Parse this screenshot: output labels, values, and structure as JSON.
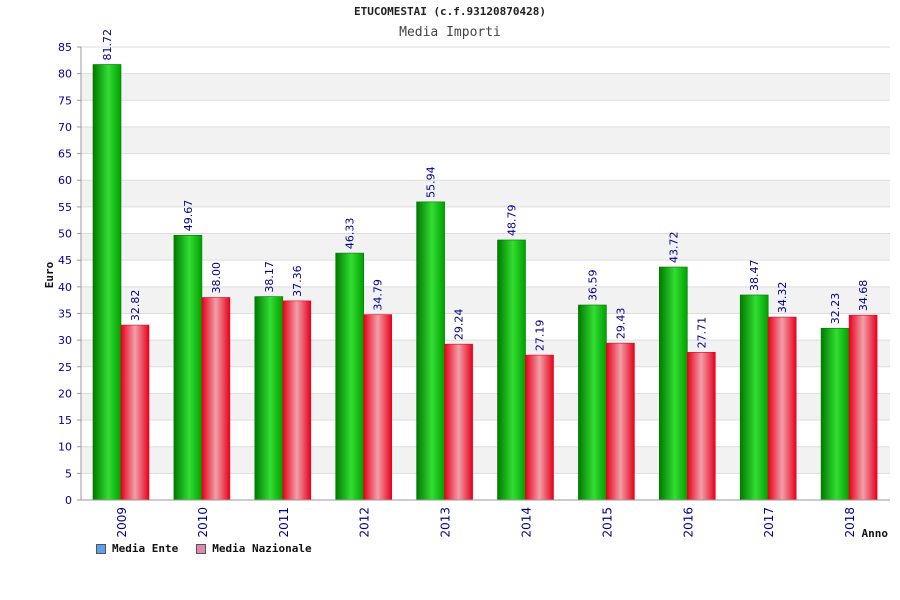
{
  "chart_data": {
    "type": "bar",
    "title": "ETUCOMESTAI (c.f.93120870428)",
    "subtitle": "Media Importi",
    "xlabel": "Anno",
    "ylabel": "Euro",
    "ylim": [
      0,
      85
    ],
    "ytick_step": 5,
    "categories": [
      "2009",
      "2010",
      "2011",
      "2012",
      "2013",
      "2014",
      "2015",
      "2016",
      "2017",
      "2018"
    ],
    "series": [
      {
        "name": "Media Ente",
        "values": [
          81.72,
          49.67,
          38.17,
          46.33,
          55.94,
          48.79,
          36.59,
          43.72,
          38.47,
          32.23
        ],
        "labels": [
          "81.72",
          "49.67",
          "38.17",
          "46.33",
          "55.94",
          "48.79",
          "36.59",
          "43.72",
          "38.47",
          "32.23"
        ]
      },
      {
        "name": "Media Nazionale",
        "values": [
          32.82,
          38.0,
          37.36,
          34.79,
          29.24,
          27.19,
          29.43,
          27.71,
          34.32,
          34.68
        ],
        "labels": [
          "32.82",
          "38.00",
          "37.36",
          "34.79",
          "29.24",
          "27.19",
          "29.43",
          "27.71",
          "34.32",
          "34.68"
        ]
      }
    ],
    "grid": true,
    "legend_position": "bottom-left",
    "colors": {
      "ente_dark": "#007a00",
      "ente_light": "#33dd33",
      "naz_dark": "#e8001c",
      "naz_light": "#f0a0a8",
      "band": "#f2f2f2",
      "axis_text": "#00008b",
      "legend_ente": "#5aa0ee",
      "legend_naz": "#e088b0"
    }
  }
}
